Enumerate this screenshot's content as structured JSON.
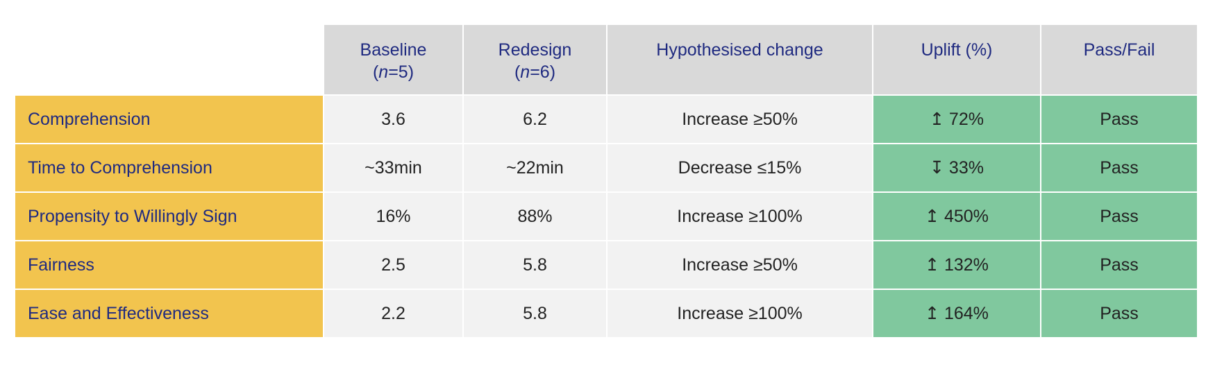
{
  "table": {
    "header": [
      {
        "lines": [
          [
            "Baseline"
          ],
          [
            "(",
            "n",
            "=5)"
          ]
        ]
      },
      {
        "lines": [
          [
            "Redesign"
          ],
          [
            "(",
            "n",
            "=6)"
          ]
        ]
      },
      {
        "lines": [
          [
            "Hypothesised change"
          ]
        ]
      },
      {
        "lines": [
          [
            "Uplift (%)"
          ]
        ]
      },
      {
        "lines": [
          [
            "Pass/Fail"
          ]
        ]
      }
    ],
    "rows": [
      [
        "Comprehension",
        "3.6",
        "6.2",
        "Increase ≥50%",
        "↥ 72%",
        "Pass"
      ],
      [
        "Time to Comprehension",
        "~33min",
        "~22min",
        "Decrease ≤15%",
        "↧ 33%",
        "Pass"
      ],
      [
        "Propensity to Willingly Sign",
        "16%",
        "88%",
        "Increase ≥100%",
        "↥ 450%",
        "Pass"
      ],
      [
        "Fairness",
        "2.5",
        "5.8",
        "Increase ≥50%",
        "↥ 132%",
        "Pass"
      ],
      [
        "Ease and Effectiveness",
        "2.2",
        "5.8",
        "Increase ≥100%",
        "↥ 164%",
        "Pass"
      ]
    ]
  }
}
